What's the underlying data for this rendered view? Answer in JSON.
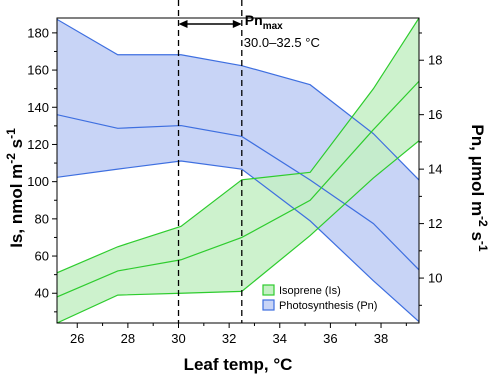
{
  "chart_data": {
    "type": "area",
    "xlabel": "Leaf temp, °C",
    "ylabel_left": "Is, nmol m-2 s-1",
    "ylabel_right": "Pn, μmol m-2 s-1",
    "xlim": [
      25.2,
      39.5
    ],
    "ylim_left": [
      24,
      188
    ],
    "ylim_right": [
      8.35,
      19.55
    ],
    "x_ticks": [
      26,
      28,
      30,
      32,
      34,
      36,
      38
    ],
    "y_left_ticks": [
      40,
      60,
      80,
      100,
      120,
      140,
      160,
      180
    ],
    "y_right_ticks": [
      10,
      12,
      14,
      16,
      18
    ],
    "series": [
      {
        "name": "Isoprene (Is)",
        "axis": "left",
        "color": "#2ecc2e",
        "fill": "#c4f0c4",
        "x": [
          25.2,
          27.6,
          30.1,
          32.5,
          35.2,
          37.7,
          39.5
        ],
        "mean": [
          38,
          52,
          58,
          70,
          90,
          128,
          154
        ],
        "upper": [
          51,
          65,
          76,
          101,
          105,
          150,
          188
        ],
        "lower": [
          24,
          39,
          40,
          41,
          71,
          102,
          122
        ]
      },
      {
        "name": "Photosynthesis (Pn)",
        "axis": "right",
        "color": "#3e6fe0",
        "fill": "#c8d4f6",
        "x": [
          25.2,
          27.6,
          30.1,
          32.5,
          35.2,
          37.7,
          39.5
        ],
        "mean": [
          16.0,
          15.5,
          15.6,
          15.2,
          13.6,
          12.0,
          10.3
        ],
        "upper": [
          19.5,
          18.2,
          18.2,
          17.8,
          17.1,
          15.3,
          13.6
        ],
        "lower": [
          13.7,
          14.0,
          14.3,
          14.0,
          12.1,
          9.9,
          8.4
        ]
      }
    ],
    "annotation": {
      "label_main": "Pn",
      "label_sub": "max",
      "range_text": "30.0–32.5 °C",
      "x_start": 30.0,
      "x_end": 32.5
    },
    "legend": {
      "position": "bottom-right",
      "entries": [
        "Isoprene (Is)",
        "Photosynthesis (Pn)"
      ]
    }
  }
}
